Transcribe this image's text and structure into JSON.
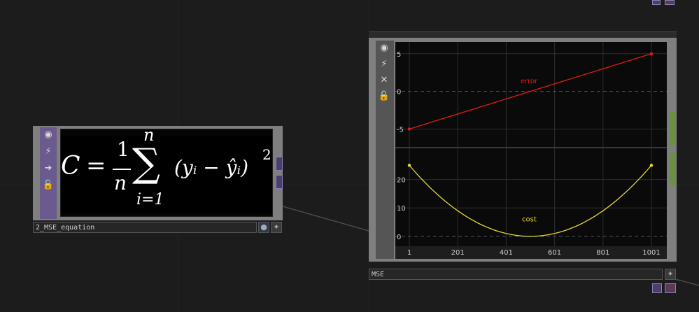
{
  "equation_node": {
    "name": "2_MSE_equation",
    "formula": {
      "lhs": "C",
      "eq": "=",
      "frac_num": "1",
      "frac_den": "n",
      "sum_upper": "n",
      "sum_lower": "i=1",
      "sum_sign": "∑",
      "body": "(yᵢ − ŷᵢ)",
      "exponent": "2"
    }
  },
  "chart_node": {
    "name": "MSE"
  },
  "icons": {
    "viewer": "viewer-icon",
    "bypass": "bypass-icon",
    "export": "export-icon",
    "close": "close-icon",
    "lock": "lock-icon",
    "add": "add-icon"
  },
  "colors": {
    "error": "#e01a1a",
    "cost": "#e6d832",
    "node_sidebar": "#6a5a8e"
  },
  "chart_data": [
    {
      "type": "line",
      "series": [
        {
          "name": "error",
          "x": [
            1,
            1001
          ],
          "y": [
            -5,
            5
          ]
        }
      ],
      "yticks": [
        "5",
        "0",
        "-5"
      ],
      "ylim": [
        -7,
        6
      ],
      "xlim": [
        1,
        1001
      ],
      "grid": true
    },
    {
      "type": "line",
      "series": [
        {
          "name": "cost",
          "formula": "y = 25*((x-501)/500)^2",
          "x_range": [
            1,
            1001
          ],
          "min": 0,
          "max": 25
        }
      ],
      "yticks": [
        "20",
        "10",
        "0"
      ],
      "ylim": [
        -3,
        30
      ],
      "xticks": [
        "1",
        "201",
        "401",
        "601",
        "801",
        "1001"
      ],
      "xlim": [
        1,
        1001
      ],
      "grid": true
    }
  ]
}
